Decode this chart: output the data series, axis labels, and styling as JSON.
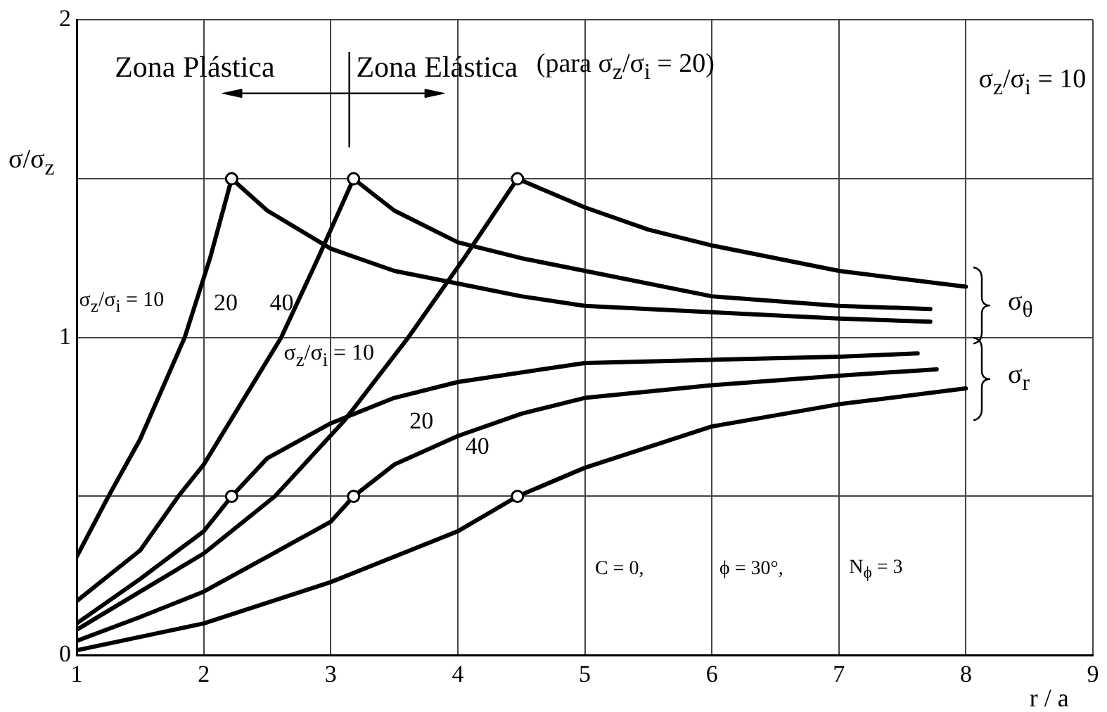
{
  "chart_data": {
    "type": "line",
    "xlabel": "r / a",
    "ylabel": "σ/σ$_{z}$",
    "xlim": [
      1,
      9
    ],
    "xticks": [
      1,
      2,
      3,
      4,
      5,
      6,
      7,
      8,
      9
    ],
    "ylim": [
      0,
      2
    ],
    "yticks": [
      0,
      {
        "value": 0.5,
        "label": null
      },
      1,
      {
        "value": 1.5,
        "label": null
      },
      2
    ],
    "grid": true,
    "line_style": "solid",
    "series": [
      {
        "type": "scatter",
        "marker": "circle",
        "color": "#000000",
        "x": [
          2.22,
          3.18,
          4.47,
          2.22,
          3.18,
          4.47
        ],
        "values": [
          1.5,
          1.5,
          1.5,
          0.5,
          0.5,
          0.5
        ]
      },
      {
        "color": "#000000",
        "x": [
          1,
          1.25,
          1.5,
          1.85,
          2.05,
          2.22,
          2.5,
          3,
          3.5,
          4,
          4.5,
          5,
          6,
          7,
          7.72
        ],
        "values": [
          0.31,
          0.5,
          0.68,
          1.0,
          1.25,
          1.5,
          1.4,
          1.28,
          1.21,
          1.17,
          1.13,
          1.1,
          1.08,
          1.06,
          1.05
        ]
      },
      {
        "color": "#000000",
        "x": [
          1,
          1.5,
          1.8,
          2,
          2.61,
          2.9,
          3.18,
          3.5,
          4,
          4.5,
          5,
          6,
          7,
          7.72
        ],
        "values": [
          0.17,
          0.33,
          0.5,
          0.6,
          1.0,
          1.25,
          1.5,
          1.4,
          1.3,
          1.25,
          1.21,
          1.13,
          1.1,
          1.09
        ]
      },
      {
        "color": "#000000",
        "x": [
          1,
          1.5,
          2,
          2.56,
          3.11,
          3.61,
          4.05,
          4.47,
          5,
          5.5,
          6,
          7,
          8
        ],
        "values": [
          0.08,
          0.2,
          0.32,
          0.5,
          0.74,
          1.0,
          1.25,
          1.5,
          1.41,
          1.34,
          1.29,
          1.21,
          1.16
        ]
      },
      {
        "color": "#000000",
        "x": [
          1,
          1.5,
          2,
          2.22,
          2.5,
          3,
          3.5,
          4,
          5,
          6,
          7,
          7.62
        ],
        "values": [
          0.1,
          0.24,
          0.39,
          0.5,
          0.62,
          0.73,
          0.81,
          0.86,
          0.92,
          0.93,
          0.94,
          0.95
        ]
      },
      {
        "color": "#000000",
        "x": [
          1,
          1.5,
          2,
          2.5,
          3,
          3.18,
          3.5,
          4,
          4.5,
          5,
          6,
          7,
          7.77
        ],
        "values": [
          0.045,
          0.12,
          0.2,
          0.31,
          0.42,
          0.5,
          0.6,
          0.69,
          0.76,
          0.81,
          0.85,
          0.88,
          0.9
        ]
      },
      {
        "color": "#000000",
        "x": [
          1,
          2,
          3,
          4,
          4.47,
          5,
          6,
          7,
          8
        ],
        "values": [
          0.015,
          0.1,
          0.23,
          0.39,
          0.5,
          0.59,
          0.72,
          0.79,
          0.84
        ]
      }
    ],
    "annotations": [
      "Zona Plástica",
      "Zona Elástica",
      "(para σ$_{z}$/σ$_{i}$ = 20)",
      "σ$_{z}$/σ$_{i}$ = 10",
      "C = 0,",
      "ϕ = 30°,",
      "N$_{ϕ}$ = 3",
      "σ$_{z}$/σ$_{i}$ = 10",
      "20",
      "40",
      "σ$_{z}$/σ$_{i}$ = 10",
      "20",
      "40",
      "σ$_{θ}$",
      "σ$_{r}$"
    ]
  }
}
